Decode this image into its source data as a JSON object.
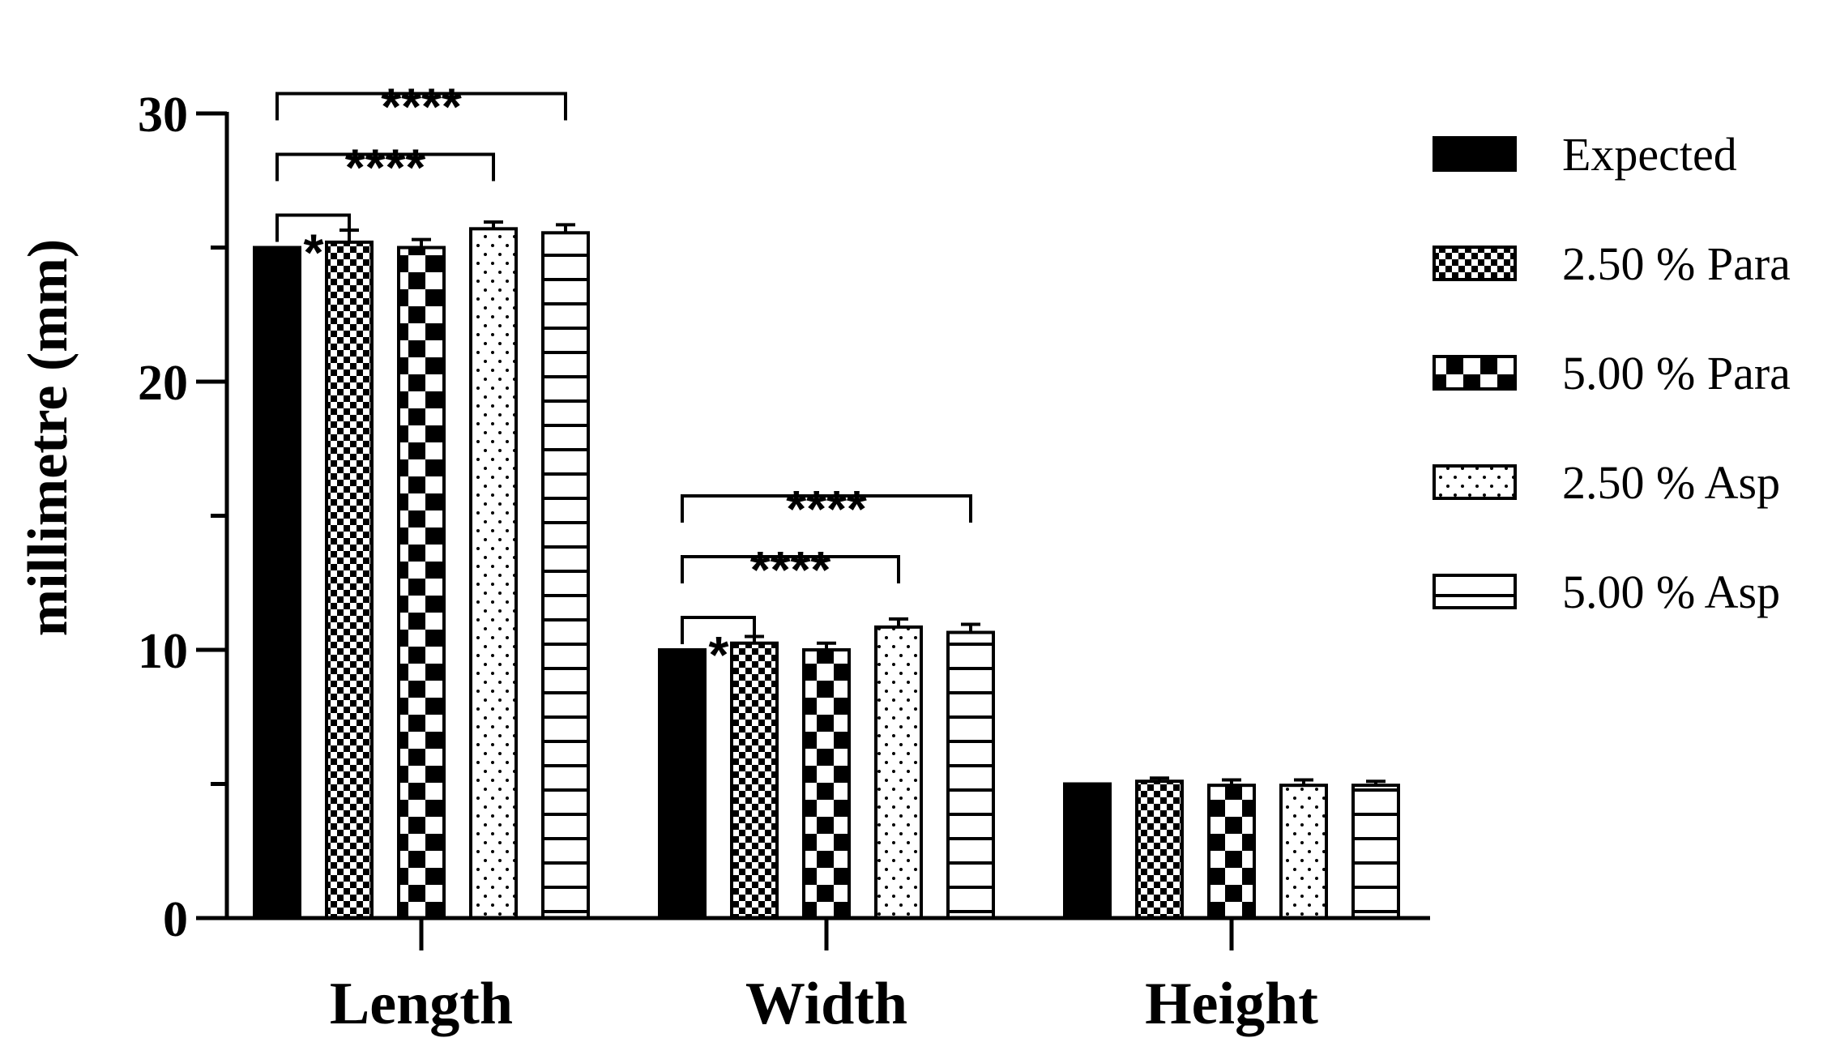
{
  "chart_data": {
    "type": "bar",
    "title": "",
    "xlabel": "",
    "ylabel": "millimetre (mm)",
    "ylim": [
      0,
      30
    ],
    "yticks": [
      0,
      10,
      20,
      30
    ],
    "categories": [
      "Length",
      "Width",
      "Height"
    ],
    "legend_position": "right",
    "series": [
      {
        "name": "Expected",
        "pattern": "solid",
        "values": [
          25.0,
          10.0,
          5.0
        ],
        "errors": [
          0,
          0,
          0
        ]
      },
      {
        "name": "2.50 % Para",
        "pattern": "fine-checker",
        "values": [
          25.2,
          10.25,
          5.1
        ],
        "errors": [
          0.45,
          0.25,
          0.12
        ]
      },
      {
        "name": "5.00 % Para",
        "pattern": "checker",
        "values": [
          25.0,
          10.0,
          4.95
        ],
        "errors": [
          0.3,
          0.25,
          0.2
        ]
      },
      {
        "name": "2.50 % Asp",
        "pattern": "dots",
        "values": [
          25.7,
          10.85,
          4.95
        ],
        "errors": [
          0.25,
          0.3,
          0.2
        ]
      },
      {
        "name": "5.00 % Asp",
        "pattern": "h-lines",
        "values": [
          25.55,
          10.65,
          4.95
        ],
        "errors": [
          0.3,
          0.3,
          0.15
        ]
      }
    ],
    "significance": [
      {
        "category": 0,
        "from": 0,
        "to": 1,
        "label": "*"
      },
      {
        "category": 0,
        "from": 0,
        "to": 3,
        "label": "****"
      },
      {
        "category": 0,
        "from": 0,
        "to": 4,
        "label": "****"
      },
      {
        "category": 1,
        "from": 0,
        "to": 1,
        "label": "*"
      },
      {
        "category": 1,
        "from": 0,
        "to": 3,
        "label": "****"
      },
      {
        "category": 1,
        "from": 0,
        "to": 4,
        "label": "****"
      }
    ]
  }
}
